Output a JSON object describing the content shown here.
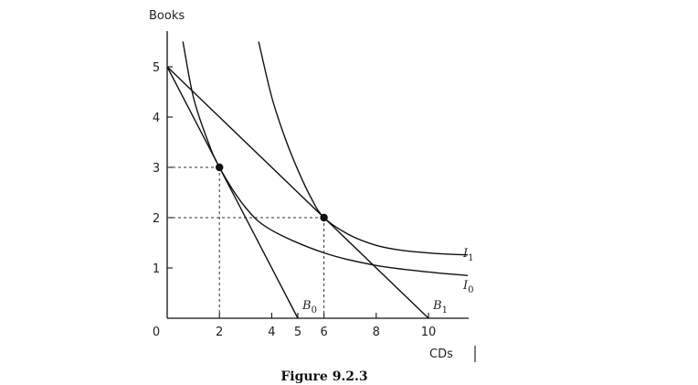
{
  "chart_data": {
    "type": "line",
    "title": "Figure 9.2.3",
    "xlabel": "CDs",
    "ylabel": "Books",
    "xlim": [
      0,
      12
    ],
    "ylim": [
      0,
      5.9
    ],
    "x_ticks": [
      {
        "value": 0,
        "label": "0"
      },
      {
        "value": 2,
        "label": "2"
      },
      {
        "value": 4,
        "label": "4"
      },
      {
        "value": 5,
        "label": "5"
      },
      {
        "value": 6,
        "label": "6"
      },
      {
        "value": 8,
        "label": "8"
      },
      {
        "value": 10,
        "label": "10"
      }
    ],
    "y_ticks": [
      {
        "value": 1,
        "label": "1"
      },
      {
        "value": 2,
        "label": "2"
      },
      {
        "value": 3,
        "label": "3"
      },
      {
        "value": 4,
        "label": "4"
      },
      {
        "value": 5,
        "label": "5"
      }
    ],
    "grid": false,
    "budget_lines": [
      {
        "name": "B0",
        "label_main": "B",
        "label_sub": "0",
        "points": [
          [
            0,
            5
          ],
          [
            5,
            0
          ]
        ]
      },
      {
        "name": "B1",
        "label_main": "B",
        "label_sub": "1",
        "points": [
          [
            0,
            5
          ],
          [
            10,
            0
          ]
        ]
      }
    ],
    "indifference_curves": [
      {
        "name": "I0",
        "label_main": "I",
        "label_sub": "0",
        "points": [
          [
            0.6,
            5.5
          ],
          [
            1.0,
            4.4
          ],
          [
            1.5,
            3.6
          ],
          [
            2.0,
            3.0
          ],
          [
            3.0,
            2.2
          ],
          [
            4.0,
            1.75
          ],
          [
            6.0,
            1.3
          ],
          [
            8.0,
            1.05
          ],
          [
            10.0,
            0.92
          ],
          [
            11.5,
            0.85
          ]
        ]
      },
      {
        "name": "I1",
        "label_main": "I",
        "label_sub": "1",
        "points": [
          [
            3.5,
            5.5
          ],
          [
            4.0,
            4.4
          ],
          [
            4.5,
            3.6
          ],
          [
            5.0,
            2.95
          ],
          [
            5.5,
            2.4
          ],
          [
            6.0,
            2.0
          ],
          [
            7.0,
            1.65
          ],
          [
            8.0,
            1.45
          ],
          [
            9.0,
            1.35
          ],
          [
            10.5,
            1.28
          ],
          [
            11.5,
            1.26
          ]
        ]
      }
    ],
    "equilibrium_points": [
      {
        "x": 2,
        "y": 3
      },
      {
        "x": 6,
        "y": 2
      }
    ]
  }
}
